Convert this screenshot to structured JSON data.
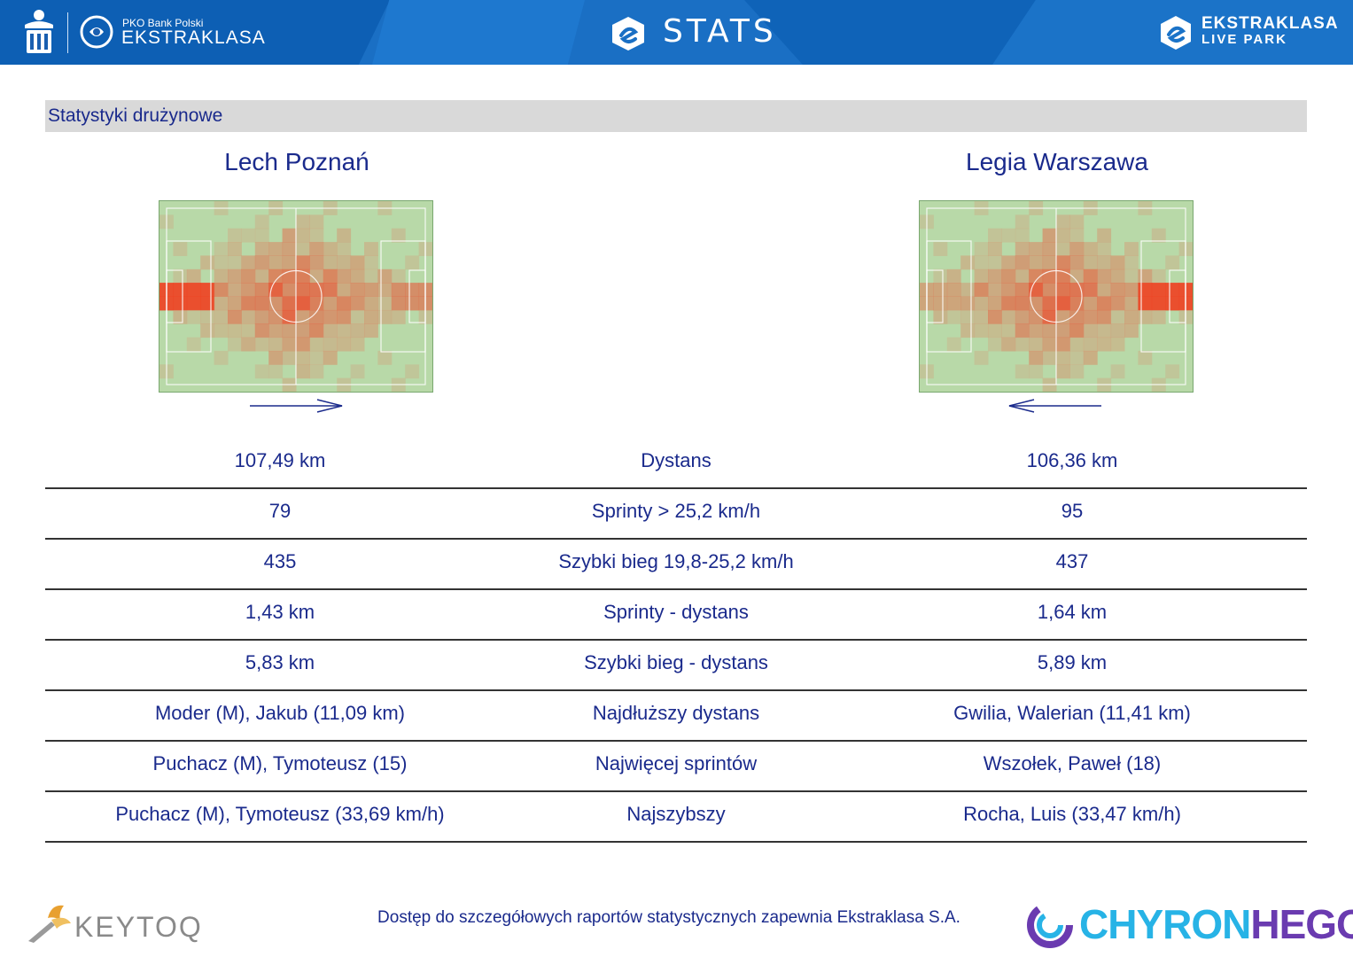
{
  "header": {
    "pko_label": "PKO Bank Polski",
    "ekstraklasa_label": "EKSTRAKLASA",
    "stats_title": "STATS",
    "livepark_line1": "EKSTRAKLASA",
    "livepark_line2": "LIVE PARK",
    "icons": [
      "pko-bank-icon",
      "ekstraklasa-ball-icon",
      "stats-logo-icon",
      "livepark-logo-icon"
    ]
  },
  "section": {
    "title": "Statystyki drużynowe"
  },
  "teams": {
    "left": {
      "name": "Lech Poznań",
      "attack_direction": "right"
    },
    "right": {
      "name": "Legia Warszawa",
      "attack_direction": "left"
    }
  },
  "colors": {
    "brand_blue": "#1a6fc4",
    "text_navy": "#1a2a8c",
    "pitch_green": "#b8d9a8",
    "heat_red": "#d8401a"
  },
  "stats_rows": [
    {
      "left": "107,49 km",
      "label": "Dystans",
      "right": "106,36 km"
    },
    {
      "left": "79",
      "label": "Sprinty > 25,2 km/h",
      "right": "95"
    },
    {
      "left": "435",
      "label": "Szybki bieg 19,8-25,2 km/h",
      "right": "437"
    },
    {
      "left": "1,43 km",
      "label": "Sprinty - dystans",
      "right": "1,64 km"
    },
    {
      "left": "5,83 km",
      "label": "Szybki bieg - dystans",
      "right": "5,89 km"
    },
    {
      "left": "Moder (M), Jakub (11,09 km)",
      "label": "Najdłuższy dystans",
      "right": "Gwilia, Walerian (11,41 km)"
    },
    {
      "left": "Puchacz (M), Tymoteusz (15)",
      "label": "Najwięcej sprintów",
      "right": "Wszołek, Paweł (18)"
    },
    {
      "left": "Puchacz (M), Tymoteusz (33,69 km/h)",
      "label": "Najszybszy",
      "right": "Rocha, Luis (33,47 km/h)"
    }
  ],
  "footer": {
    "keytoq": "KEYTOQ",
    "note": "Dostęp do szczegółowych raportów statystycznych zapewnia Ekstraklasa S.A.",
    "chyron_part1": "CHYRON",
    "chyron_part2": "HEGO"
  }
}
